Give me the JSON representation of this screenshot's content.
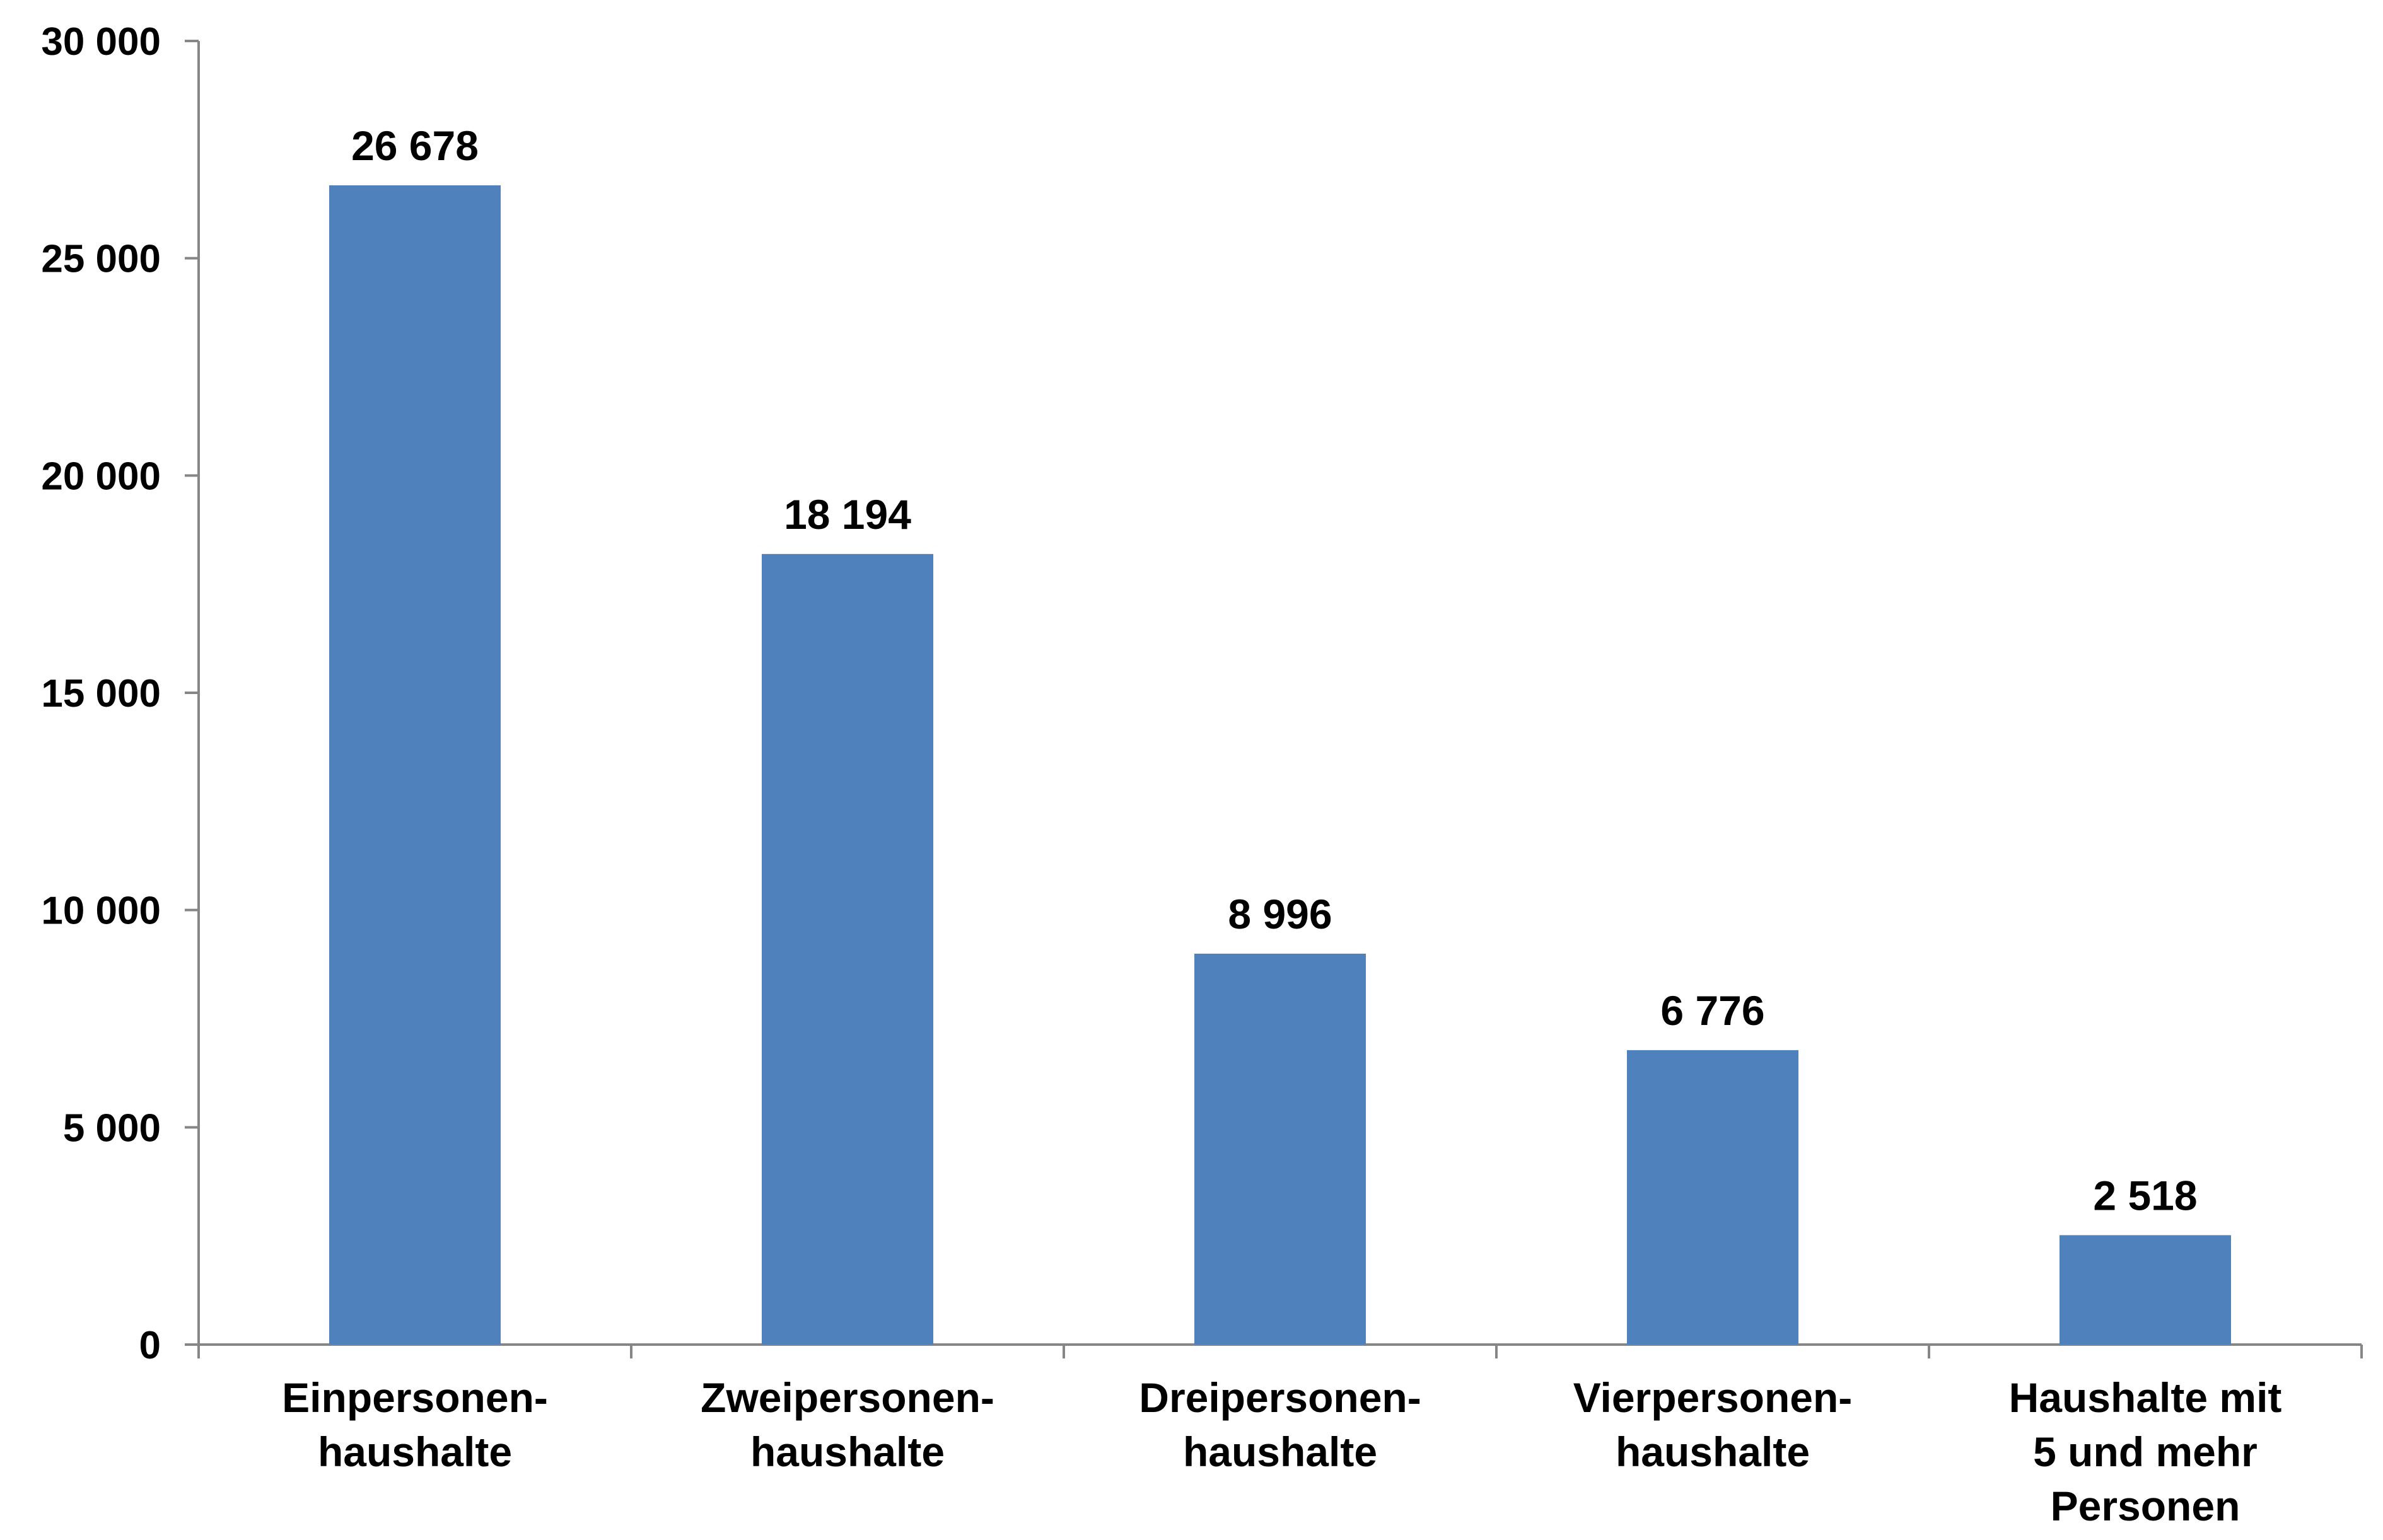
{
  "chart_data": {
    "type": "bar",
    "title": "",
    "xlabel": "",
    "ylabel": "",
    "categories": [
      [
        "Einpersonen-",
        "haushalte"
      ],
      [
        "Zweipersonen-",
        "haushalte"
      ],
      [
        "Dreipersonen-",
        "haushalte"
      ],
      [
        "Vierpersonen-",
        "haushalte"
      ],
      [
        "Haushalte mit",
        "5 und mehr",
        "Personen"
      ]
    ],
    "values": [
      26678,
      18194,
      8996,
      6776,
      2518
    ],
    "value_labels": [
      "26 678",
      "18 194",
      "8 996",
      "6 776",
      "2 518"
    ],
    "ylim": [
      0,
      30000
    ],
    "yticks": [
      0,
      5000,
      10000,
      15000,
      20000,
      25000,
      30000
    ],
    "ytick_labels": [
      "0",
      "5 000",
      "10 000",
      "15 000",
      "20 000",
      "25 000",
      "30 000"
    ],
    "grid": false,
    "legend": "none",
    "bar_color": "#4f81bd",
    "axis_color": "#868686"
  }
}
